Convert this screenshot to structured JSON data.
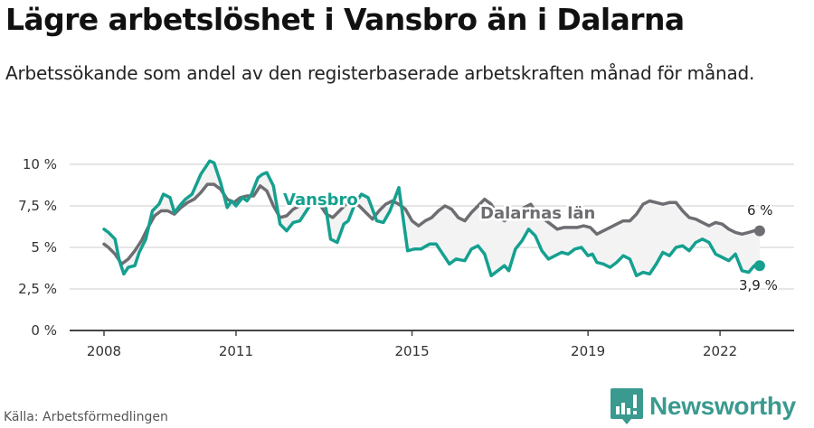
{
  "header": {
    "title": "Lägre arbetslöshet i Vansbro än i Dalarna",
    "subtitle": "Arbetssökande som andel av den registerbaserade arbetskraften månad för månad."
  },
  "footer": {
    "source": "Källa: Arbetsförmedlingen",
    "brand": "Newsworthy",
    "brand_icon": "bar-chart-speech-bubble-icon"
  },
  "colors": {
    "vansbro": "#15a08f",
    "dalarna": "#6e6d72",
    "band_fill": "#f3f3f4",
    "grid": "#dedede",
    "axis": "#444444",
    "brand": "#3a9a8f"
  },
  "chart_data": {
    "type": "line",
    "title": "Lägre arbetslöshet i Vansbro än i Dalarna",
    "subtitle": "Arbetssökande som andel av den registerbaserade arbetskraften månad för månad.",
    "xlabel": "",
    "ylabel": "",
    "ylim": [
      0,
      10
    ],
    "xlim": [
      2007.2,
      2023.7
    ],
    "grid": true,
    "legend": "inline labels",
    "y_ticks": [
      {
        "value": 0,
        "label": "0 %"
      },
      {
        "value": 2.5,
        "label": "2,5 %"
      },
      {
        "value": 5,
        "label": "5 %"
      },
      {
        "value": 7.5,
        "label": "7,5 %"
      },
      {
        "value": 10,
        "label": "10 %"
      }
    ],
    "x_ticks": [
      {
        "value": 2008,
        "label": "2008"
      },
      {
        "value": 2011,
        "label": "2011"
      },
      {
        "value": 2015,
        "label": "2015"
      },
      {
        "value": 2019,
        "label": "2019"
      },
      {
        "value": 2022,
        "label": "2022"
      }
    ],
    "series": [
      {
        "name": "Vansbro",
        "label": "Vansbro",
        "end_label": "3,9 %",
        "end_value": 3.9,
        "x": [
          2008.0,
          2008.1,
          2008.25,
          2008.35,
          2008.45,
          2008.55,
          2008.7,
          2008.8,
          2008.95,
          2009.1,
          2009.25,
          2009.35,
          2009.5,
          2009.6,
          2009.75,
          2009.85,
          2010.0,
          2010.1,
          2010.2,
          2010.3,
          2010.4,
          2010.5,
          2010.65,
          2010.8,
          2010.9,
          2011.0,
          2011.15,
          2011.25,
          2011.35,
          2011.5,
          2011.6,
          2011.7,
          2011.85,
          2012.0,
          2012.15,
          2012.3,
          2012.45,
          2012.6,
          2012.75,
          2012.9,
          2013.0,
          2013.15,
          2013.3,
          2013.45,
          2013.55,
          2013.7,
          2013.85,
          2014.0,
          2014.1,
          2014.2,
          2014.35,
          2014.5,
          2014.7,
          2014.9,
          2015.05,
          2015.2,
          2015.4,
          2015.55,
          2015.7,
          2015.85,
          2016.0,
          2016.2,
          2016.35,
          2016.5,
          2016.65,
          2016.8,
          2016.95,
          2017.1,
          2017.2,
          2017.35,
          2017.5,
          2017.65,
          2017.8,
          2017.95,
          2018.1,
          2018.25,
          2018.4,
          2018.55,
          2018.7,
          2018.85,
          2019.0,
          2019.1,
          2019.2,
          2019.35,
          2019.5,
          2019.65,
          2019.8,
          2019.95,
          2020.1,
          2020.25,
          2020.4,
          2020.55,
          2020.7,
          2020.85,
          2021.0,
          2021.15,
          2021.3,
          2021.45,
          2021.6,
          2021.75,
          2021.9,
          2022.05,
          2022.2,
          2022.35,
          2022.5,
          2022.65,
          2022.78,
          2022.9
        ],
        "values": [
          6.1,
          5.9,
          5.5,
          4.2,
          3.4,
          3.8,
          3.9,
          4.7,
          5.5,
          7.2,
          7.6,
          8.2,
          8.0,
          7.1,
          7.6,
          7.9,
          8.2,
          8.8,
          9.4,
          9.8,
          10.2,
          10.1,
          8.9,
          7.4,
          7.8,
          7.5,
          8.0,
          7.8,
          8.2,
          9.2,
          9.4,
          9.5,
          8.7,
          6.4,
          6.0,
          6.5,
          6.6,
          7.2,
          7.8,
          8.1,
          8.1,
          5.5,
          5.3,
          6.4,
          6.6,
          7.6,
          8.2,
          8.0,
          7.3,
          6.6,
          6.5,
          7.2,
          8.6,
          4.8,
          4.9,
          4.9,
          5.2,
          5.2,
          4.6,
          4.0,
          4.3,
          4.2,
          4.9,
          5.1,
          4.6,
          3.3,
          3.6,
          3.9,
          3.6,
          4.9,
          5.4,
          6.1,
          5.7,
          4.8,
          4.3,
          4.5,
          4.7,
          4.6,
          4.9,
          5.0,
          4.5,
          4.6,
          4.1,
          4.0,
          3.8,
          4.1,
          4.5,
          4.3,
          3.3,
          3.5,
          3.4,
          4.0,
          4.7,
          4.5,
          5.0,
          5.1,
          4.8,
          5.3,
          5.5,
          5.3,
          4.6,
          4.4,
          4.2,
          4.6,
          3.6,
          3.5,
          3.9,
          3.9
        ],
        "color": "#15a08f"
      },
      {
        "name": "Dalarnas län",
        "label": "Dalarnas län",
        "end_label": "6 %",
        "end_value": 6.0,
        "x": [
          2008.0,
          2008.1,
          2008.25,
          2008.4,
          2008.55,
          2008.7,
          2008.85,
          2009.0,
          2009.15,
          2009.3,
          2009.45,
          2009.6,
          2009.75,
          2009.9,
          2010.05,
          2010.2,
          2010.35,
          2010.5,
          2010.65,
          2010.8,
          2010.95,
          2011.1,
          2011.25,
          2011.4,
          2011.55,
          2011.7,
          2011.85,
          2012.0,
          2012.15,
          2012.3,
          2012.45,
          2012.6,
          2012.75,
          2012.9,
          2013.05,
          2013.2,
          2013.35,
          2013.5,
          2013.65,
          2013.8,
          2013.95,
          2014.1,
          2014.25,
          2014.4,
          2014.55,
          2014.7,
          2014.85,
          2015.0,
          2015.15,
          2015.3,
          2015.45,
          2015.6,
          2015.75,
          2015.9,
          2016.05,
          2016.2,
          2016.35,
          2016.5,
          2016.65,
          2016.8,
          2016.95,
          2017.1,
          2017.25,
          2017.4,
          2017.55,
          2017.7,
          2017.85,
          2018.0,
          2018.15,
          2018.3,
          2018.45,
          2018.6,
          2018.75,
          2018.9,
          2019.05,
          2019.2,
          2019.35,
          2019.5,
          2019.65,
          2019.8,
          2019.95,
          2020.1,
          2020.25,
          2020.4,
          2020.55,
          2020.7,
          2020.85,
          2021.0,
          2021.15,
          2021.3,
          2021.45,
          2021.6,
          2021.75,
          2021.9,
          2022.05,
          2022.2,
          2022.35,
          2022.5,
          2022.65,
          2022.78,
          2022.9
        ],
        "values": [
          5.2,
          5.0,
          4.6,
          4.0,
          4.3,
          4.8,
          5.4,
          6.2,
          6.9,
          7.2,
          7.2,
          7.0,
          7.4,
          7.7,
          7.9,
          8.3,
          8.8,
          8.8,
          8.5,
          7.9,
          7.7,
          8.0,
          8.1,
          8.1,
          8.7,
          8.4,
          7.5,
          6.8,
          6.9,
          7.3,
          7.5,
          7.9,
          8.0,
          7.6,
          7.0,
          6.8,
          7.2,
          7.6,
          7.7,
          7.5,
          7.1,
          6.7,
          7.2,
          7.6,
          7.8,
          7.6,
          7.3,
          6.6,
          6.3,
          6.6,
          6.8,
          7.2,
          7.5,
          7.3,
          6.8,
          6.6,
          7.1,
          7.5,
          7.9,
          7.6,
          6.9,
          6.6,
          6.9,
          7.1,
          7.4,
          7.6,
          7.0,
          6.7,
          6.4,
          6.1,
          6.2,
          6.2,
          6.2,
          6.3,
          6.2,
          5.8,
          6.0,
          6.2,
          6.4,
          6.6,
          6.6,
          7.0,
          7.6,
          7.8,
          7.7,
          7.6,
          7.7,
          7.7,
          7.2,
          6.8,
          6.7,
          6.5,
          6.3,
          6.5,
          6.4,
          6.1,
          5.9,
          5.8,
          5.9,
          6.0,
          6.0
        ],
        "color": "#6e6d72"
      }
    ]
  }
}
